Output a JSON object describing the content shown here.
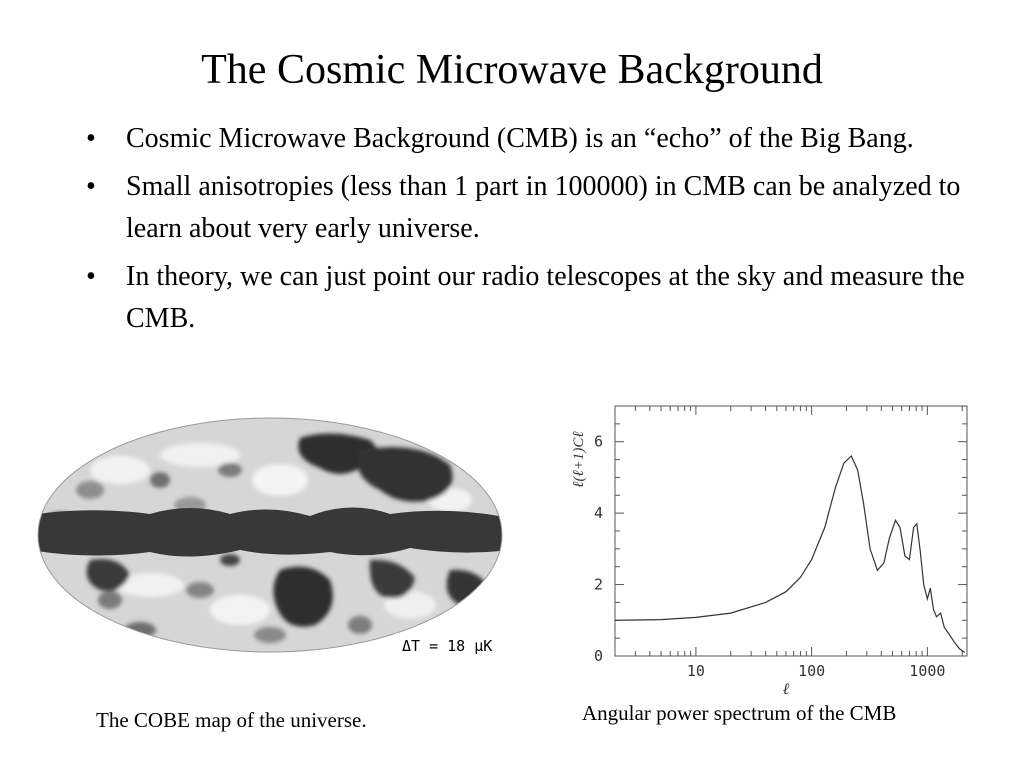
{
  "slide": {
    "title": "The Cosmic Microwave Background",
    "bullets": [
      "Cosmic Microwave Background (CMB) is an “echo” of the Big Bang.",
      "Small anisotropies (less than 1 part in 100000) in CMB can be analyzed to learn about very early universe.",
      "In theory, we can just point our radio telescopes at the sky and measure the CMB."
    ],
    "bullet_symbol": "•"
  },
  "map": {
    "label": "ΔT = 18 μK",
    "caption": "The COBE map of the universe.",
    "colors": {
      "light": "#d4d4d4",
      "dark": "#3a3a3a",
      "mid": "#8c8c8c"
    }
  },
  "chart_data": {
    "type": "line",
    "title": "",
    "xlabel": "ℓ",
    "ylabel": "ℓ(ℓ+1)Cℓ",
    "xscale": "log",
    "xlim": [
      2,
      2200
    ],
    "ylim": [
      0,
      7
    ],
    "x_ticks": [
      "10",
      "100",
      "1000"
    ],
    "y_ticks": [
      "0",
      "2",
      "4",
      "6"
    ],
    "grid": false,
    "series": [
      {
        "x": [
          2,
          5,
          10,
          20,
          40,
          60,
          80,
          100,
          130,
          160,
          190,
          220,
          250,
          280,
          320,
          370,
          420,
          470,
          530,
          580,
          640,
          700,
          760,
          810,
          870,
          930,
          1000,
          1060,
          1130,
          1200,
          1300,
          1400,
          1550,
          1700,
          1900,
          2100
        ],
        "y": [
          1.0,
          1.02,
          1.08,
          1.2,
          1.5,
          1.8,
          2.2,
          2.7,
          3.6,
          4.7,
          5.4,
          5.6,
          5.2,
          4.3,
          3.0,
          2.4,
          2.6,
          3.3,
          3.8,
          3.6,
          2.8,
          2.7,
          3.6,
          3.7,
          2.9,
          2.0,
          1.6,
          1.9,
          1.3,
          1.1,
          1.2,
          0.8,
          0.6,
          0.4,
          0.2,
          0.1
        ]
      }
    ],
    "caption": "Angular power spectrum of the CMB"
  }
}
